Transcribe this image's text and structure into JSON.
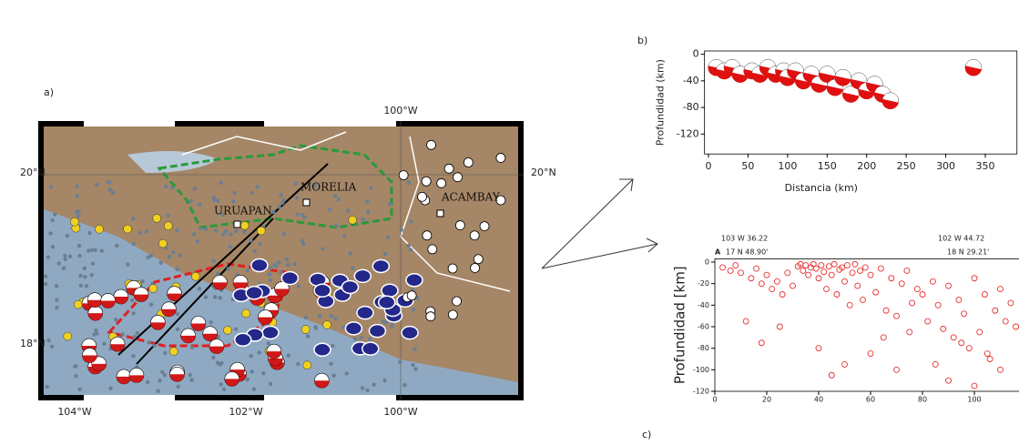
{
  "panels": {
    "a": "a)",
    "b": "b)",
    "c": "c)"
  },
  "map": {
    "top_lon": "100°W",
    "left_lat_top": "20°N",
    "right_lat_top": "20°N",
    "left_lat_bottom": "18°N",
    "bottom_lons": [
      "104°W",
      "102°W",
      "100°W"
    ],
    "cities": [
      "MORELIA",
      "URUAPAN",
      "ACAMBAY"
    ]
  },
  "chart_data": [
    {
      "type": "scatter",
      "xlabel": "Distancia (km)",
      "ylabel": "Profundidad (km)",
      "color": "#e01010",
      "x": [
        10,
        20,
        30,
        40,
        55,
        65,
        75,
        85,
        95,
        100,
        110,
        120,
        130,
        140,
        150,
        160,
        170,
        180,
        190,
        200,
        210,
        220,
        230,
        335
      ],
      "y": [
        -20,
        -25,
        -20,
        -30,
        -25,
        -30,
        -20,
        -30,
        -25,
        -35,
        -25,
        -40,
        -30,
        -45,
        -30,
        -50,
        -35,
        -60,
        -40,
        -55,
        -45,
        -60,
        -70,
        -20
      ],
      "xlim": [
        -5,
        390
      ],
      "ylim": [
        -150,
        5
      ],
      "xticks": [
        0,
        50,
        100,
        150,
        200,
        250,
        300,
        350
      ],
      "yticks": [
        0,
        -40,
        -80,
        -120
      ]
    },
    {
      "type": "scatter",
      "ylabel": "Profundidad [km]",
      "color": "#e83030",
      "annotations": [
        "103 W 36.22",
        "A",
        "17 N 48.90'",
        "102 W 44.72",
        "18 N 29.21'"
      ],
      "x": [
        3,
        6,
        8,
        10,
        14,
        16,
        18,
        20,
        22,
        24,
        26,
        28,
        30,
        32,
        33,
        34,
        35,
        36,
        37,
        38,
        39,
        40,
        41,
        42,
        43,
        44,
        45,
        46,
        47,
        48,
        49,
        50,
        51,
        52,
        53,
        54,
        55,
        56,
        57,
        58,
        60,
        62,
        64,
        66,
        68,
        70,
        72,
        74,
        76,
        78,
        80,
        82,
        84,
        86,
        88,
        90,
        92,
        94,
        96,
        98,
        100,
        102,
        104,
        106,
        108,
        110,
        112,
        114,
        116,
        12,
        18,
        25,
        40,
        45,
        50,
        60,
        65,
        70,
        75,
        85,
        90,
        95,
        100,
        105,
        110
      ],
      "y": [
        -5,
        -8,
        -3,
        -10,
        -15,
        -6,
        -20,
        -12,
        -25,
        -18,
        -30,
        -10,
        -22,
        -4,
        -2,
        -8,
        -3,
        -12,
        -5,
        -2,
        -6,
        -15,
        -3,
        -9,
        -25,
        -4,
        -12,
        -2,
        -30,
        -7,
        -5,
        -18,
        -3,
        -40,
        -10,
        -2,
        -22,
        -8,
        -35,
        -5,
        -12,
        -28,
        -6,
        -45,
        -15,
        -50,
        -20,
        -8,
        -38,
        -25,
        -30,
        -55,
        -18,
        -40,
        -62,
        -22,
        -70,
        -35,
        -48,
        -80,
        -15,
        -65,
        -30,
        -90,
        -45,
        -25,
        -55,
        -38,
        -60,
        -55,
        -75,
        -60,
        -80,
        -105,
        -95,
        -85,
        -70,
        -100,
        -65,
        -95,
        -110,
        -75,
        -115,
        -85,
        -100
      ],
      "xlim": [
        0,
        118
      ],
      "ylim": [
        -120,
        3
      ],
      "xticks": [
        0,
        20,
        40,
        60,
        80,
        100
      ],
      "yticks": [
        0,
        -20,
        -40,
        -60,
        -80,
        -100,
        -120
      ]
    }
  ]
}
